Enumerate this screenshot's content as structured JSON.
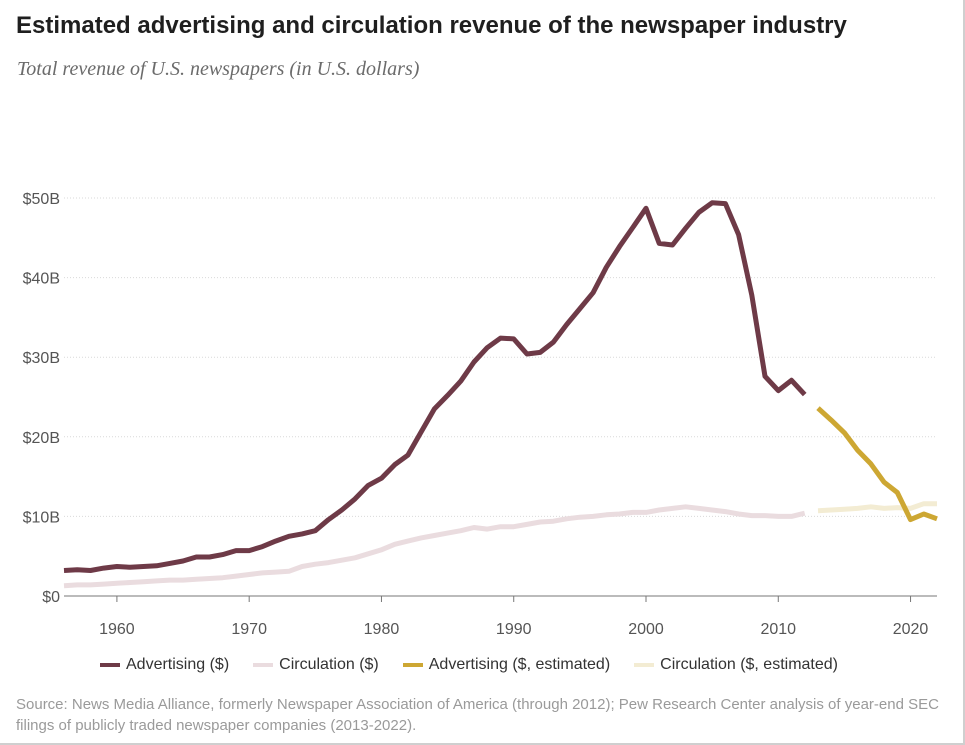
{
  "title": "Estimated advertising and circulation revenue of the newspaper industry",
  "subtitle": "Total revenue of U.S. newspapers (in U.S. dollars)",
  "source": "Source: News Media Alliance, formerly Newspaper Association of America (through 2012); Pew Research Center analysis of year-end SEC filings of publicly traded newspaper companies (2013-2022).",
  "colors": {
    "advertising": "#6e3a47",
    "circulation": "#eadcdf",
    "advertising_est": "#cda733",
    "circulation_est": "#f3ecd3"
  },
  "chart_data": {
    "type": "line",
    "xlim": [
      1956,
      2022
    ],
    "ylim": [
      0,
      50
    ],
    "x_ticks": [
      1960,
      1970,
      1980,
      1990,
      2000,
      2010,
      2020
    ],
    "y_ticks": [
      {
        "value": 0,
        "label": "$0"
      },
      {
        "value": 10,
        "label": "$10B"
      },
      {
        "value": 20,
        "label": "$20B"
      },
      {
        "value": 30,
        "label": "$30B"
      },
      {
        "value": 40,
        "label": "$40B"
      },
      {
        "value": 50,
        "label": "$50B"
      }
    ],
    "grid": "horizontal",
    "legend_position": "bottom",
    "series": [
      {
        "name": "Advertising ($)",
        "x": [
          1956,
          1957,
          1958,
          1959,
          1960,
          1961,
          1962,
          1963,
          1964,
          1965,
          1966,
          1967,
          1968,
          1969,
          1970,
          1971,
          1972,
          1973,
          1974,
          1975,
          1976,
          1977,
          1978,
          1979,
          1980,
          1981,
          1982,
          1983,
          1984,
          1985,
          1986,
          1987,
          1988,
          1989,
          1990,
          1991,
          1992,
          1993,
          1994,
          1995,
          1996,
          1997,
          1998,
          1999,
          2000,
          2001,
          2002,
          2003,
          2004,
          2005,
          2006,
          2007,
          2008,
          2009,
          2010,
          2011,
          2012
        ],
        "values": [
          3.2,
          3.3,
          3.2,
          3.5,
          3.7,
          3.6,
          3.7,
          3.8,
          4.1,
          4.4,
          4.9,
          4.9,
          5.2,
          5.7,
          5.7,
          6.2,
          6.9,
          7.5,
          7.8,
          8.2,
          9.6,
          10.8,
          12.2,
          13.9,
          14.8,
          16.5,
          17.7,
          20.6,
          23.5,
          25.2,
          27.0,
          29.4,
          31.2,
          32.4,
          32.3,
          30.4,
          30.6,
          31.9,
          34.1,
          36.1,
          38.1,
          41.3,
          43.9,
          46.3,
          48.7,
          44.3,
          44.1,
          46.2,
          48.2,
          49.4,
          49.3,
          45.4,
          37.8,
          27.6,
          25.8,
          27.1,
          25.3
        ]
      },
      {
        "name": "Circulation ($)",
        "x": [
          1956,
          1957,
          1958,
          1959,
          1960,
          1961,
          1962,
          1963,
          1964,
          1965,
          1966,
          1967,
          1968,
          1969,
          1970,
          1971,
          1972,
          1973,
          1974,
          1975,
          1976,
          1977,
          1978,
          1979,
          1980,
          1981,
          1982,
          1983,
          1984,
          1985,
          1986,
          1987,
          1988,
          1989,
          1990,
          1991,
          1992,
          1993,
          1994,
          1995,
          1996,
          1997,
          1998,
          1999,
          2000,
          2001,
          2002,
          2003,
          2004,
          2005,
          2006,
          2007,
          2008,
          2009,
          2010,
          2011,
          2012
        ],
        "values": [
          1.3,
          1.4,
          1.4,
          1.5,
          1.6,
          1.7,
          1.8,
          1.9,
          2.0,
          2.0,
          2.1,
          2.2,
          2.3,
          2.5,
          2.7,
          2.9,
          3.0,
          3.1,
          3.7,
          4.0,
          4.2,
          4.5,
          4.8,
          5.3,
          5.8,
          6.5,
          6.9,
          7.3,
          7.6,
          7.9,
          8.2,
          8.6,
          8.4,
          8.7,
          8.7,
          9.0,
          9.3,
          9.4,
          9.7,
          9.9,
          10.0,
          10.2,
          10.3,
          10.5,
          10.5,
          10.8,
          11.0,
          11.2,
          11.0,
          10.8,
          10.6,
          10.3,
          10.1,
          10.1,
          10.0,
          10.0,
          10.4
        ]
      },
      {
        "name": "Advertising ($, estimated)",
        "x": [
          2013,
          2014,
          2015,
          2016,
          2017,
          2018,
          2019,
          2020,
          2021,
          2022
        ],
        "values": [
          23.6,
          22.1,
          20.5,
          18.3,
          16.6,
          14.3,
          13.0,
          9.6,
          10.3,
          9.7
        ]
      },
      {
        "name": "Circulation ($, estimated)",
        "x": [
          2013,
          2014,
          2015,
          2016,
          2017,
          2018,
          2019,
          2020,
          2021,
          2022
        ],
        "values": [
          10.7,
          10.8,
          10.9,
          11.0,
          11.2,
          11.0,
          11.1,
          11.0,
          11.6,
          11.6
        ]
      }
    ]
  }
}
